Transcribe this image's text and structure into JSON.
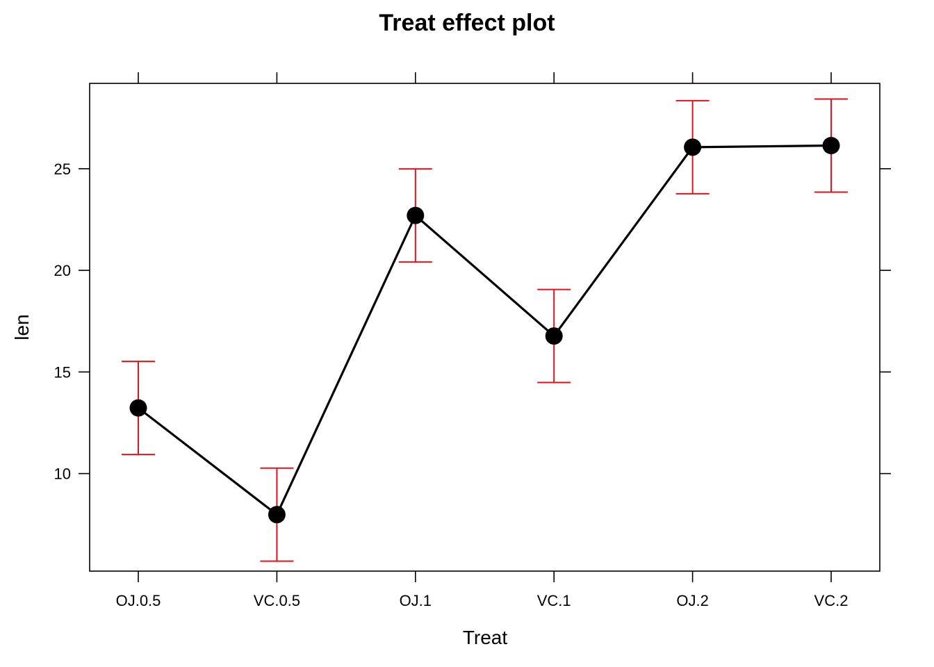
{
  "chart_data": {
    "type": "line",
    "title": "Treat effect plot",
    "xlabel": "Treat",
    "ylabel": "len",
    "categories": [
      "OJ.0.5",
      "VC.0.5",
      "OJ.1",
      "VC.1",
      "OJ.2",
      "VC.2"
    ],
    "values": [
      13.23,
      7.98,
      22.7,
      16.77,
      26.06,
      26.14
    ],
    "lower": [
      10.94,
      5.69,
      20.41,
      14.48,
      23.77,
      23.85
    ],
    "upper": [
      15.52,
      10.27,
      24.99,
      19.06,
      28.35,
      28.43
    ],
    "ylim": [
      5.2,
      29.2
    ],
    "yticks": [
      10,
      15,
      20,
      25
    ],
    "colors": {
      "line": "#000000",
      "errorbar": "#e8101a",
      "point": "#000000"
    }
  }
}
